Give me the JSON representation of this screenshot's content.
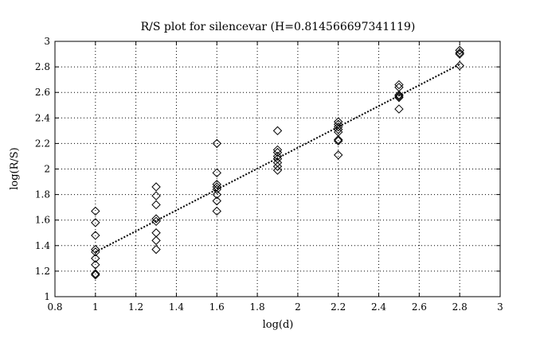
{
  "chart_data": {
    "type": "scatter",
    "title": "R/S plot for silencevar (H=0.814566697341119)",
    "xlabel": "log(d)",
    "ylabel": "log(R/S)",
    "xlim": [
      0.8,
      3
    ],
    "ylim": [
      1,
      3
    ],
    "xticks": [
      "0.8",
      "1",
      "1.2",
      "1.4",
      "1.6",
      "1.8",
      "2",
      "2.2",
      "2.4",
      "2.6",
      "2.8",
      "3"
    ],
    "yticks": [
      "1",
      "1.2",
      "1.4",
      "1.6",
      "1.8",
      "2",
      "2.2",
      "2.4",
      "2.6",
      "2.8",
      "3"
    ],
    "grid": true,
    "marker": "diamond",
    "points": [
      {
        "x": 1.0,
        "y": 1.67
      },
      {
        "x": 1.0,
        "y": 1.58
      },
      {
        "x": 1.0,
        "y": 1.48
      },
      {
        "x": 1.0,
        "y": 1.37
      },
      {
        "x": 1.0,
        "y": 1.35
      },
      {
        "x": 1.0,
        "y": 1.3
      },
      {
        "x": 1.0,
        "y": 1.25
      },
      {
        "x": 1.0,
        "y": 1.18
      },
      {
        "x": 1.0,
        "y": 1.17
      },
      {
        "x": 1.3,
        "y": 1.86
      },
      {
        "x": 1.3,
        "y": 1.79
      },
      {
        "x": 1.3,
        "y": 1.72
      },
      {
        "x": 1.3,
        "y": 1.61
      },
      {
        "x": 1.3,
        "y": 1.59
      },
      {
        "x": 1.3,
        "y": 1.5
      },
      {
        "x": 1.3,
        "y": 1.44
      },
      {
        "x": 1.3,
        "y": 1.37
      },
      {
        "x": 1.6,
        "y": 2.2
      },
      {
        "x": 1.6,
        "y": 1.97
      },
      {
        "x": 1.6,
        "y": 1.88
      },
      {
        "x": 1.6,
        "y": 1.86
      },
      {
        "x": 1.6,
        "y": 1.84
      },
      {
        "x": 1.6,
        "y": 1.8
      },
      {
        "x": 1.6,
        "y": 1.75
      },
      {
        "x": 1.6,
        "y": 1.67
      },
      {
        "x": 1.9,
        "y": 2.3
      },
      {
        "x": 1.9,
        "y": 2.15
      },
      {
        "x": 1.9,
        "y": 2.13
      },
      {
        "x": 1.9,
        "y": 2.1
      },
      {
        "x": 1.9,
        "y": 2.08
      },
      {
        "x": 1.9,
        "y": 2.05
      },
      {
        "x": 1.9,
        "y": 2.02
      },
      {
        "x": 1.9,
        "y": 1.99
      },
      {
        "x": 2.2,
        "y": 2.37
      },
      {
        "x": 2.2,
        "y": 2.35
      },
      {
        "x": 2.2,
        "y": 2.33
      },
      {
        "x": 2.2,
        "y": 2.31
      },
      {
        "x": 2.2,
        "y": 2.29
      },
      {
        "x": 2.2,
        "y": 2.23
      },
      {
        "x": 2.2,
        "y": 2.22
      },
      {
        "x": 2.2,
        "y": 2.11
      },
      {
        "x": 2.5,
        "y": 2.66
      },
      {
        "x": 2.5,
        "y": 2.64
      },
      {
        "x": 2.5,
        "y": 2.58
      },
      {
        "x": 2.5,
        "y": 2.57
      },
      {
        "x": 2.5,
        "y": 2.56
      },
      {
        "x": 2.5,
        "y": 2.47
      },
      {
        "x": 2.8,
        "y": 2.93
      },
      {
        "x": 2.8,
        "y": 2.91
      },
      {
        "x": 2.8,
        "y": 2.9
      },
      {
        "x": 2.8,
        "y": 2.81
      }
    ],
    "fit_line": {
      "x": [
        1.0,
        2.8
      ],
      "y": [
        1.35,
        2.82
      ]
    }
  }
}
